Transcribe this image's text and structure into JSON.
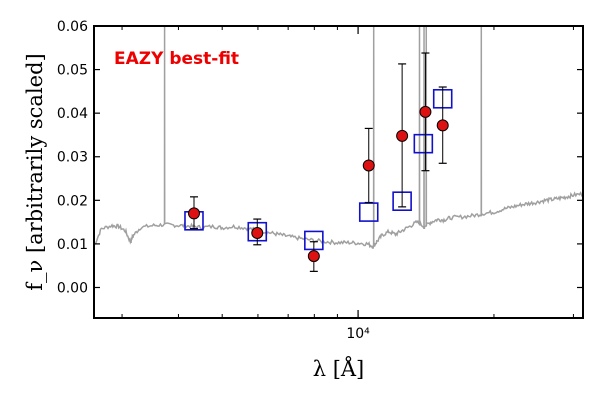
{
  "chart_data": {
    "type": "scatter",
    "title": "",
    "xlabel": "λ [Å]",
    "ylabel": "f_ν [arbitrarily scaled]",
    "xscale": "log",
    "xlim": [
      2600,
      31500
    ],
    "ylim": [
      -0.007,
      0.06
    ],
    "xticks": [
      {
        "value": 10000,
        "label": "10⁴"
      }
    ],
    "yticks": [
      {
        "value": 0.0,
        "label": "0.00"
      },
      {
        "value": 0.01,
        "label": "0.01"
      },
      {
        "value": 0.02,
        "label": "0.02"
      },
      {
        "value": 0.03,
        "label": "0.03"
      },
      {
        "value": 0.04,
        "label": "0.04"
      },
      {
        "value": 0.05,
        "label": "0.05"
      },
      {
        "value": 0.06,
        "label": "0.06"
      }
    ],
    "annotation": {
      "text": "EAZY best-fit",
      "color": "#ee0000"
    },
    "colors": {
      "model_line": "#a0a0a0",
      "observed": "#dd1111",
      "model_box": "#1111cc",
      "errorbar": "#000000"
    },
    "grid": false,
    "legend": "none",
    "series": [
      {
        "kind": "observed_flux_with_errors",
        "points": [
          {
            "x": 4330,
            "y": 0.017,
            "ylo": 0.0135,
            "yhi": 0.0208
          },
          {
            "x": 5980,
            "y": 0.0125,
            "ylo": 0.0098,
            "yhi": 0.0157
          },
          {
            "x": 7980,
            "y": 0.0072,
            "ylo": 0.0037,
            "yhi": 0.0105
          },
          {
            "x": 10560,
            "y": 0.028,
            "ylo": 0.0195,
            "yhi": 0.0365
          },
          {
            "x": 12520,
            "y": 0.0348,
            "ylo": 0.0185,
            "yhi": 0.0513
          },
          {
            "x": 14100,
            "y": 0.0403,
            "ylo": 0.0268,
            "yhi": 0.0538
          },
          {
            "x": 15400,
            "y": 0.0372,
            "ylo": 0.0285,
            "yhi": 0.046
          }
        ]
      },
      {
        "kind": "model_photometry",
        "points": [
          {
            "x": 4330,
            "y": 0.0153
          },
          {
            "x": 5980,
            "y": 0.0128
          },
          {
            "x": 7980,
            "y": 0.0108
          },
          {
            "x": 10560,
            "y": 0.0173
          },
          {
            "x": 12520,
            "y": 0.0198
          },
          {
            "x": 13950,
            "y": 0.033
          },
          {
            "x": 15400,
            "y": 0.0433
          }
        ]
      },
      {
        "kind": "model_sed",
        "continuum": [
          [
            2600,
            0.0095
          ],
          [
            2700,
            0.0135
          ],
          [
            2850,
            0.0142
          ],
          [
            2950,
            0.014
          ],
          [
            3050,
            0.013
          ],
          [
            3130,
            0.0105
          ],
          [
            3180,
            0.012
          ],
          [
            3300,
            0.0138
          ],
          [
            3500,
            0.0142
          ],
          [
            3700,
            0.0144
          ],
          [
            3900,
            0.0143
          ],
          [
            4100,
            0.0142
          ],
          [
            4300,
            0.014
          ],
          [
            4500,
            0.0138
          ],
          [
            4800,
            0.014
          ],
          [
            5000,
            0.0137
          ],
          [
            5300,
            0.014
          ],
          [
            5600,
            0.0137
          ],
          [
            5900,
            0.0133
          ],
          [
            6200,
            0.0128
          ],
          [
            6500,
            0.0124
          ],
          [
            6800,
            0.012
          ],
          [
            7100,
            0.0116
          ],
          [
            7500,
            0.0112
          ],
          [
            8000,
            0.0108
          ],
          [
            8500,
            0.0105
          ],
          [
            9000,
            0.0103
          ],
          [
            9500,
            0.0103
          ],
          [
            10000,
            0.0102
          ],
          [
            10500,
            0.01
          ],
          [
            10800,
            0.0094
          ],
          [
            11000,
            0.0105
          ],
          [
            11300,
            0.012
          ],
          [
            11700,
            0.0128
          ],
          [
            12100,
            0.0122
          ],
          [
            12500,
            0.013
          ],
          [
            13000,
            0.014
          ],
          [
            13500,
            0.015
          ],
          [
            14000,
            0.014
          ],
          [
            14500,
            0.015
          ],
          [
            15000,
            0.0156
          ],
          [
            15500,
            0.0155
          ],
          [
            16000,
            0.016
          ],
          [
            17000,
            0.0162
          ],
          [
            18000,
            0.0165
          ],
          [
            19000,
            0.017
          ],
          [
            20000,
            0.0173
          ],
          [
            21000,
            0.018
          ],
          [
            22000,
            0.0185
          ],
          [
            23000,
            0.019
          ],
          [
            24000,
            0.0193
          ],
          [
            25000,
            0.0196
          ],
          [
            26000,
            0.02
          ],
          [
            27000,
            0.0202
          ],
          [
            28000,
            0.0205
          ],
          [
            29000,
            0.0208
          ],
          [
            30000,
            0.0212
          ],
          [
            31500,
            0.0215
          ]
        ],
        "emission_lines": [
          {
            "x": 3727,
            "peak": 0.06
          },
          {
            "x": 10830,
            "peak": 0.06
          },
          {
            "x": 13680,
            "peak": 0.06
          },
          {
            "x": 14000,
            "peak": 0.06
          },
          {
            "x": 14160,
            "peak": 0.06
          },
          {
            "x": 18750,
            "peak": 0.06
          }
        ]
      }
    ]
  }
}
